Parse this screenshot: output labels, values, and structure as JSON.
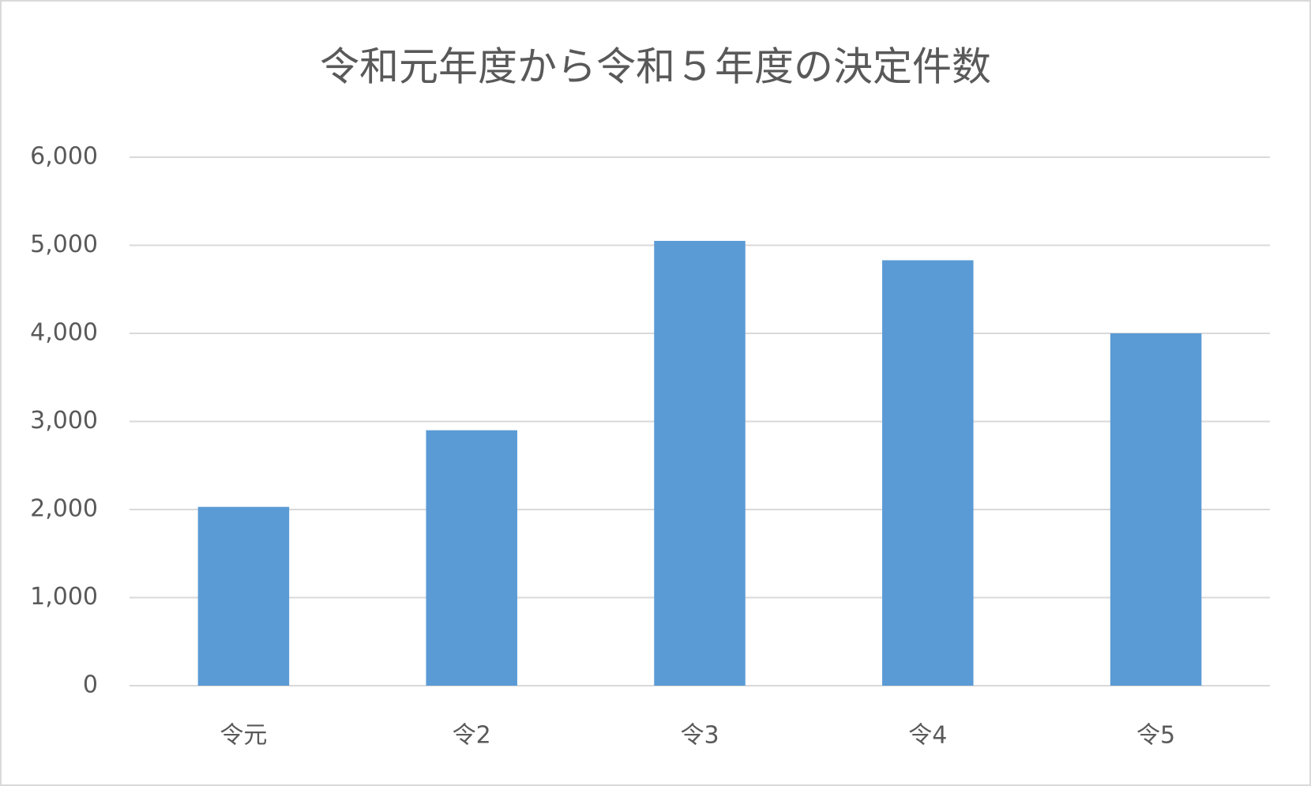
{
  "chart_data": {
    "type": "bar",
    "title": "令和元年度から令和５年度の決定件数",
    "categories": [
      "令元",
      "令2",
      "令3",
      "令4",
      "令5"
    ],
    "values": [
      2030,
      2900,
      5050,
      4830,
      4000
    ],
    "color": "#5b9bd5",
    "ylim": [
      0,
      6000
    ],
    "yticks": [
      0,
      {
        "value": 1000,
        "label": "1,000"
      },
      {
        "value": 2000,
        "label": "2,000"
      },
      {
        "value": 3000,
        "label": "3,000"
      },
      {
        "value": 4000,
        "label": "4,000"
      },
      {
        "value": 5000,
        "label": "5,000"
      },
      {
        "value": 6000,
        "label": "6,000"
      }
    ],
    "grid": true
  }
}
